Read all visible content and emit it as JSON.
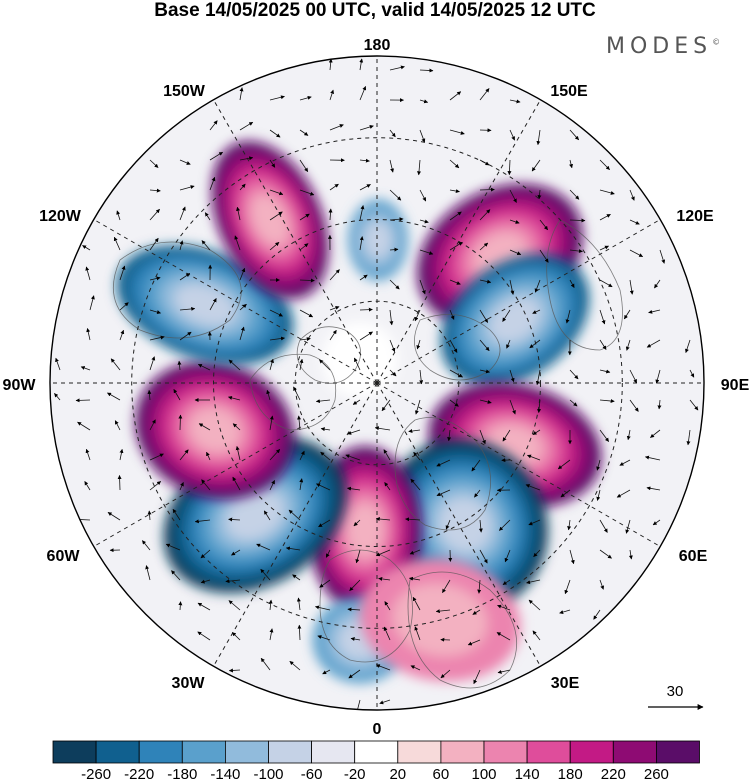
{
  "title": "Base 14/05/2025 00 UTC, valid 14/05/2025 12 UTC",
  "brand": "MODES",
  "brand_mark": "©",
  "map": {
    "projection": "north-polar-stereographic",
    "longitude_labels": [
      "180",
      "150E",
      "120E",
      "90E",
      "60E",
      "30E",
      "0",
      "30W",
      "60W",
      "90W",
      "120W",
      "150W"
    ],
    "field": "geopotential height anomaly (shaded) with wind vectors",
    "anomaly_centers": [
      {
        "sign": "positive",
        "region": "Bering Sea / E Siberia",
        "peak": 260
      },
      {
        "sign": "negative",
        "region": "E Siberia",
        "peak": -220
      },
      {
        "sign": "positive",
        "region": "Central Siberia",
        "peak": 240
      },
      {
        "sign": "negative",
        "region": "Ural / W Siberia",
        "peak": -240
      },
      {
        "sign": "positive",
        "region": "Scandinavia / Barents",
        "peak": 240
      },
      {
        "sign": "negative",
        "region": "N Atlantic / Iceland",
        "peak": -240
      },
      {
        "sign": "positive",
        "region": "Hudson Bay / Greenland",
        "peak": 240
      },
      {
        "sign": "negative",
        "region": "Alaska / NW Canada",
        "peak": -220
      },
      {
        "sign": "positive",
        "region": "Alaska / Gulf of Alaska",
        "peak": 220
      },
      {
        "sign": "negative",
        "region": "near pole (180)",
        "peak": -140
      },
      {
        "sign": "negative",
        "region": "Mediterranean",
        "peak": -140
      }
    ]
  },
  "reference_vector": {
    "value": "30"
  },
  "colorbar": {
    "labels": [
      "-260",
      "-220",
      "-180",
      "-140",
      "-100",
      "-60",
      "-20",
      "20",
      "60",
      "100",
      "140",
      "180",
      "220",
      "260"
    ],
    "colors": [
      "#0d3d5c",
      "#10608f",
      "#2f83b9",
      "#5aa0cc",
      "#91bbdc",
      "#c5d2e6",
      "#e6e7f1",
      "#ffffff",
      "#f7dada",
      "#f3b1c1",
      "#ec84af",
      "#df4d9b",
      "#c31a85",
      "#8e0b73",
      "#5a0d68"
    ]
  }
}
